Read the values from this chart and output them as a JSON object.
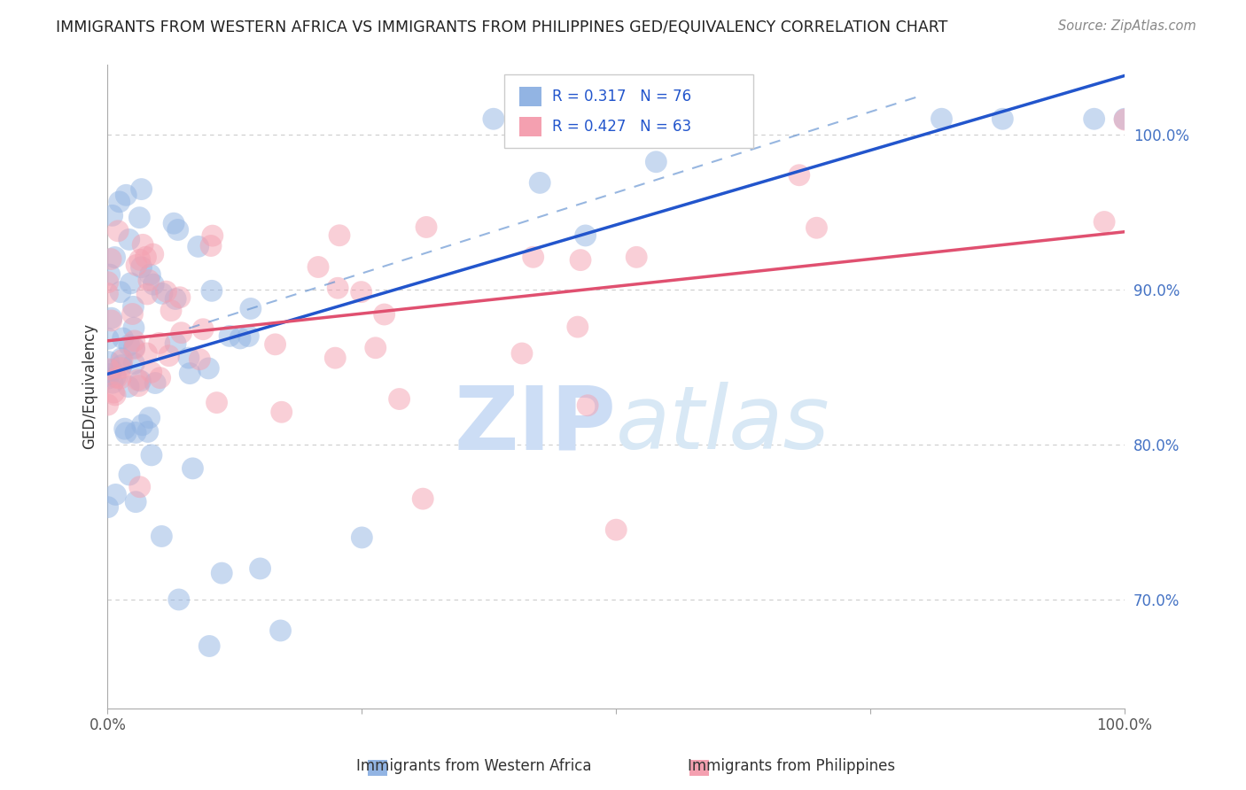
{
  "title": "IMMIGRANTS FROM WESTERN AFRICA VS IMMIGRANTS FROM PHILIPPINES GED/EQUIVALENCY CORRELATION CHART",
  "source": "Source: ZipAtlas.com",
  "ylabel": "GED/Equivalency",
  "series1_label": "Immigrants from Western Africa",
  "series2_label": "Immigrants from Philippines",
  "series1_color": "#92b4e3",
  "series2_color": "#f4a0b0",
  "line1_color": "#2255cc",
  "line2_color": "#e05070",
  "series1_R": "0.317",
  "series1_N": "76",
  "series2_R": "0.427",
  "series2_N": "63",
  "ytick_labels": [
    "70.0%",
    "80.0%",
    "90.0%",
    "100.0%"
  ],
  "ytick_values": [
    0.7,
    0.8,
    0.9,
    1.0
  ],
  "ymin": 0.63,
  "ymax": 1.045,
  "xmin": 0.0,
  "xmax": 1.0,
  "background_color": "#ffffff",
  "watermark_zip": "ZIP",
  "watermark_atlas": "atlas",
  "watermark_color": "#ccddf5",
  "grid_color": "#cccccc",
  "legend_border_color": "#cccccc"
}
